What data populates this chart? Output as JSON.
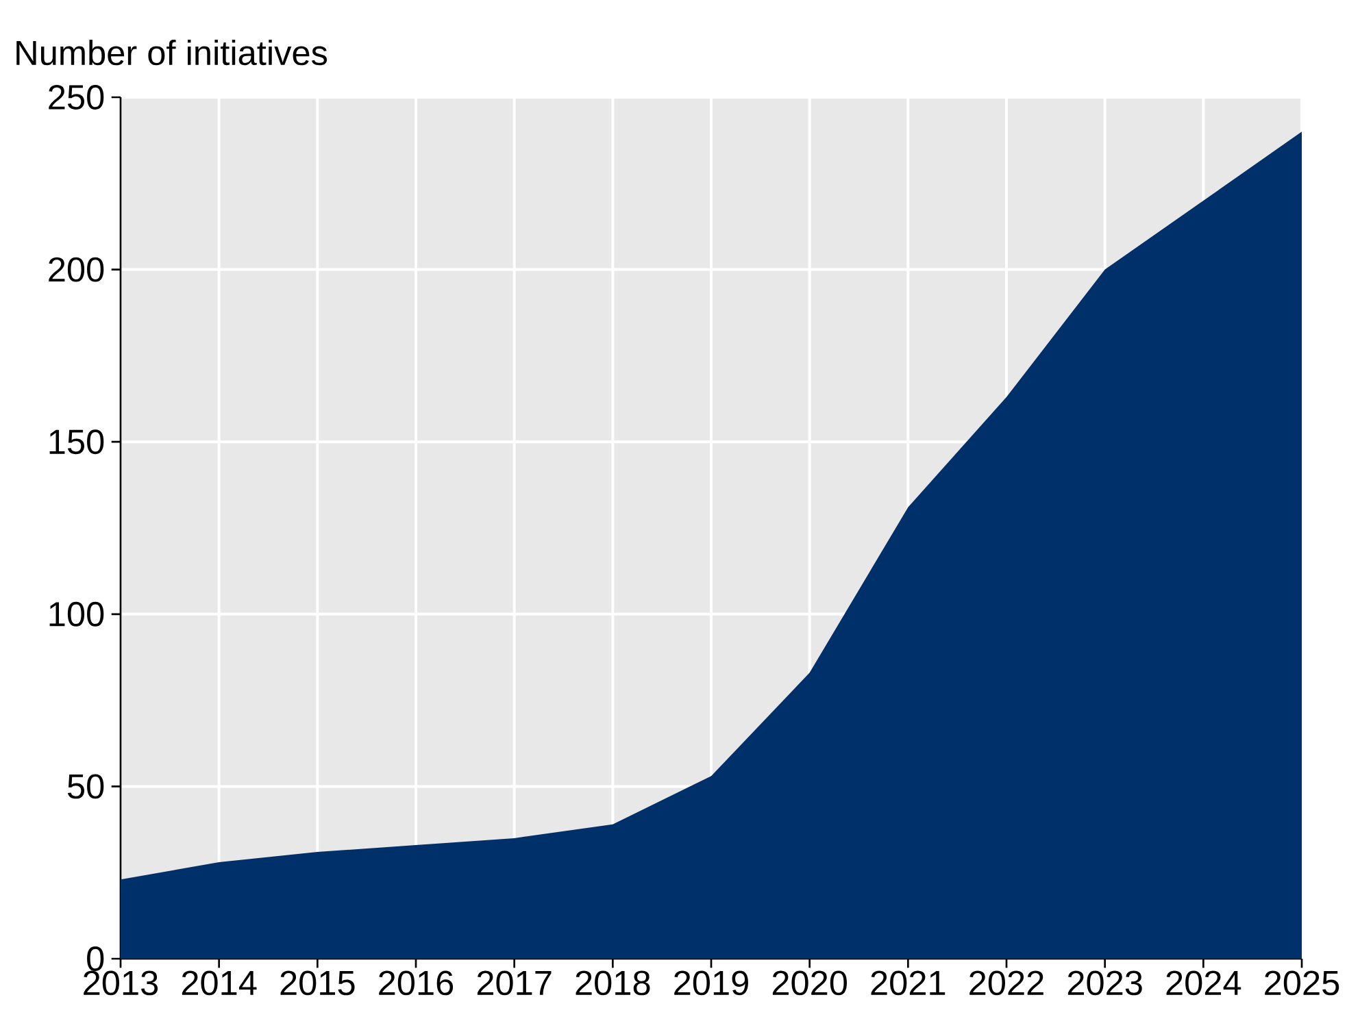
{
  "chart_data": {
    "type": "area",
    "ylabel": "Number of initiatives",
    "x": [
      2013,
      2014,
      2015,
      2016,
      2017,
      2018,
      2019,
      2020,
      2021,
      2022,
      2023,
      2024,
      2025
    ],
    "values": [
      23,
      28,
      31,
      33,
      35,
      39,
      53,
      83,
      131,
      163,
      200,
      220,
      240
    ],
    "color": "#003069",
    "xlim": [
      2013,
      2025
    ],
    "xticks": [
      2013,
      2014,
      2015,
      2016,
      2017,
      2018,
      2019,
      2020,
      2021,
      2022,
      2023,
      2024,
      2025
    ],
    "ylim": [
      0,
      250
    ],
    "yticks": [
      0,
      50,
      100,
      150,
      200,
      250
    ],
    "grid": true
  }
}
